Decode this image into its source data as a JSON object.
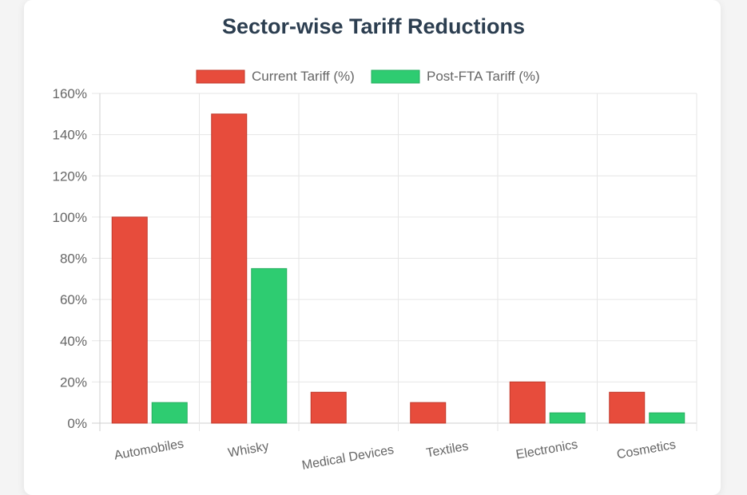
{
  "chart_data": {
    "type": "bar",
    "title": "Sector-wise Tariff Reductions",
    "categories": [
      "Automobiles",
      "Whisky",
      "Medical Devices",
      "Textiles",
      "Electronics",
      "Cosmetics"
    ],
    "series": [
      {
        "name": "Current Tariff (%)",
        "color": "#e74c3c",
        "values": [
          100,
          150,
          15,
          10,
          20,
          15
        ]
      },
      {
        "name": "Post-FTA Tariff (%)",
        "color": "#2ecc71",
        "values": [
          10,
          75,
          0,
          0,
          5,
          5
        ]
      }
    ],
    "y_ticks": [
      "0%",
      "20%",
      "40%",
      "60%",
      "80%",
      "100%",
      "120%",
      "140%",
      "160%"
    ],
    "ylim": [
      0,
      160
    ],
    "legend_position": "top",
    "grid": true
  }
}
